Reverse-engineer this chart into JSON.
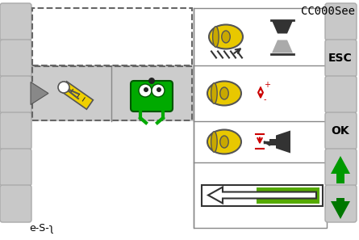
{
  "bg_color": "#e0e0e0",
  "white_area": "#ffffff",
  "title_text": "CC000See",
  "bottom_label": "e-S-ʅ",
  "esc_label": "ESC",
  "ok_label": "OK",
  "button_color": "#c8c8c8",
  "button_edge": "#aaaaaa",
  "yellow_color": "#e8c800",
  "yellow_dark": "#c8a800",
  "green_icon_color": "#00aa00",
  "red_color": "#cc0000",
  "black_color": "#000000",
  "panel_bg": "#f0f0f0",
  "sel_row_bg": "#cccccc",
  "dashed_color": "#666666",
  "arrow_green": "#009900"
}
